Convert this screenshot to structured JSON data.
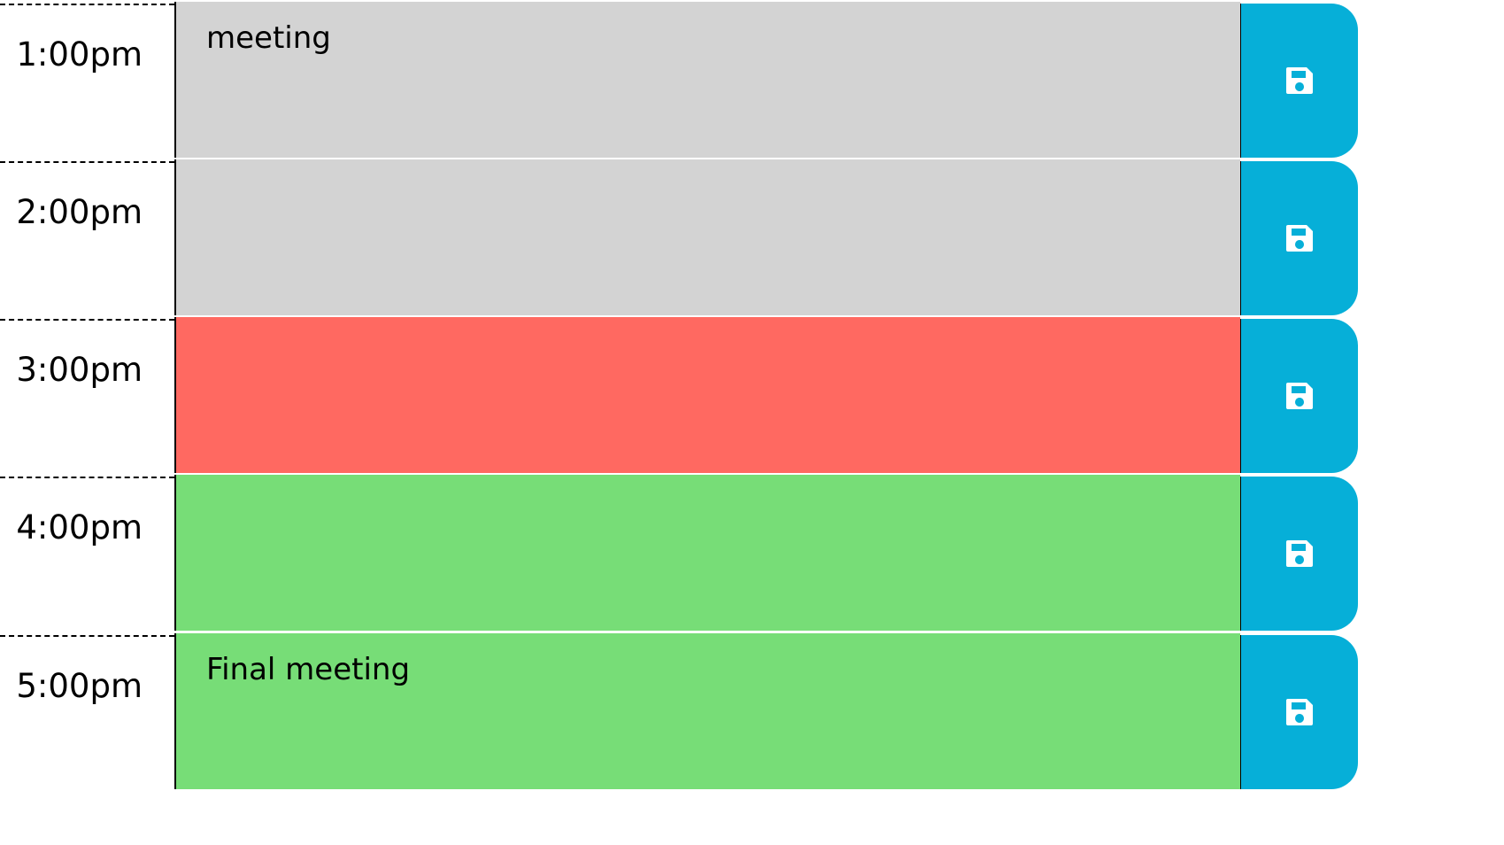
{
  "colors": {
    "past": "#d3d3d3",
    "present": "#ff6961",
    "future": "#77dd77",
    "save_button": "#06afd8"
  },
  "rows": [
    {
      "hour": "1:00pm",
      "text": "meeting",
      "status": "past",
      "save_icon": "floppy-disk-icon"
    },
    {
      "hour": "2:00pm",
      "text": "",
      "status": "past",
      "save_icon": "floppy-disk-icon"
    },
    {
      "hour": "3:00pm",
      "text": "",
      "status": "present",
      "save_icon": "floppy-disk-icon"
    },
    {
      "hour": "4:00pm",
      "text": "",
      "status": "future",
      "save_icon": "floppy-disk-icon"
    },
    {
      "hour": "5:00pm",
      "text": "Final meeting",
      "status": "future",
      "save_icon": "floppy-disk-icon"
    }
  ]
}
